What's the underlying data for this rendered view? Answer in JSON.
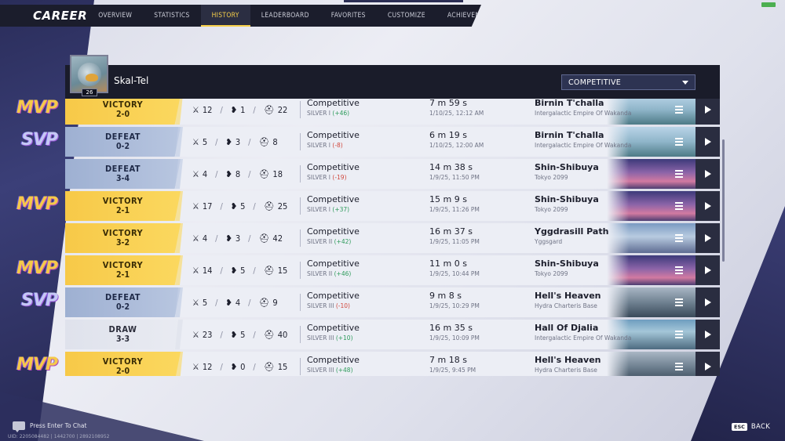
{
  "nav": {
    "title": "CAREER",
    "tabs": [
      {
        "label": "OVERVIEW"
      },
      {
        "label": "STATISTICS"
      },
      {
        "label": "HISTORY"
      },
      {
        "label": "LEADERBOARD"
      },
      {
        "label": "FAVORITES"
      },
      {
        "label": "CUSTOMIZE"
      },
      {
        "label": "ACHIEVEMENTS"
      }
    ],
    "active_tab": "HISTORY"
  },
  "profile": {
    "name": "Skal-Tel",
    "level": "26"
  },
  "mode_select": {
    "value": "COMPETITIVE"
  },
  "matches": [
    {
      "badge": "MVP",
      "result": "VICTORY",
      "score": "2-0",
      "kills": "12",
      "deaths": "1",
      "assists": "22",
      "mode": "Competitive",
      "rank": "SILVER I",
      "rank_delta": "(+46)",
      "delta_sign": "pos",
      "duration": "7 m 59 s",
      "datetime": "1/10/25, 12:12 AM",
      "map": "Birnin T'challa",
      "region": "Intergalactic Empire Of Wakanda",
      "map_key": "wakanda"
    },
    {
      "badge": "SVP",
      "result": "DEFEAT",
      "score": "0-2",
      "kills": "5",
      "deaths": "3",
      "assists": "8",
      "mode": "Competitive",
      "rank": "SILVER I",
      "rank_delta": "(-8)",
      "delta_sign": "neg",
      "duration": "6 m 19 s",
      "datetime": "1/10/25, 12:00 AM",
      "map": "Birnin T'challa",
      "region": "Intergalactic Empire Of Wakanda",
      "map_key": "wakanda"
    },
    {
      "badge": "",
      "result": "DEFEAT",
      "score": "3-4",
      "kills": "4",
      "deaths": "8",
      "assists": "18",
      "mode": "Competitive",
      "rank": "SILVER I",
      "rank_delta": "(-19)",
      "delta_sign": "neg",
      "duration": "14 m 38 s",
      "datetime": "1/9/25, 11:50 PM",
      "map": "Shin-Shibuya",
      "region": "Tokyo 2099",
      "map_key": "tokyo"
    },
    {
      "badge": "MVP",
      "result": "VICTORY",
      "score": "2-1",
      "kills": "17",
      "deaths": "5",
      "assists": "25",
      "mode": "Competitive",
      "rank": "SILVER I",
      "rank_delta": "(+37)",
      "delta_sign": "pos",
      "duration": "15 m 9 s",
      "datetime": "1/9/25, 11:26 PM",
      "map": "Shin-Shibuya",
      "region": "Tokyo 2099",
      "map_key": "tokyo"
    },
    {
      "badge": "",
      "result": "VICTORY",
      "score": "3-2",
      "kills": "4",
      "deaths": "3",
      "assists": "42",
      "mode": "Competitive",
      "rank": "SILVER II",
      "rank_delta": "(+42)",
      "delta_sign": "pos",
      "duration": "16 m 37 s",
      "datetime": "1/9/25, 11:05 PM",
      "map": "Yggdrasill Path",
      "region": "Yggsgard",
      "map_key": "yggs"
    },
    {
      "badge": "MVP",
      "result": "VICTORY",
      "score": "2-1",
      "kills": "14",
      "deaths": "5",
      "assists": "15",
      "mode": "Competitive",
      "rank": "SILVER II",
      "rank_delta": "(+46)",
      "delta_sign": "pos",
      "duration": "11 m 0 s",
      "datetime": "1/9/25, 10:44 PM",
      "map": "Shin-Shibuya",
      "region": "Tokyo 2099",
      "map_key": "tokyo"
    },
    {
      "badge": "SVP",
      "result": "DEFEAT",
      "score": "0-2",
      "kills": "5",
      "deaths": "4",
      "assists": "9",
      "mode": "Competitive",
      "rank": "SILVER III",
      "rank_delta": "(-10)",
      "delta_sign": "neg",
      "duration": "9 m 8 s",
      "datetime": "1/9/25, 10:29 PM",
      "map": "Hell's Heaven",
      "region": "Hydra Charteris Base",
      "map_key": "hydra"
    },
    {
      "badge": "",
      "result": "DRAW",
      "score": "3-3",
      "kills": "23",
      "deaths": "5",
      "assists": "40",
      "mode": "Competitive",
      "rank": "SILVER III",
      "rank_delta": "(+10)",
      "delta_sign": "pos",
      "duration": "16 m 35 s",
      "datetime": "1/9/25, 10:09 PM",
      "map": "Hall Of Djalia",
      "region": "Intergalactic Empire Of Wakanda",
      "map_key": "djalia"
    },
    {
      "badge": "MVP",
      "result": "VICTORY",
      "score": "2-0",
      "kills": "12",
      "deaths": "0",
      "assists": "15",
      "mode": "Competitive",
      "rank": "SILVER III",
      "rank_delta": "(+48)",
      "delta_sign": "pos",
      "duration": "7 m 18 s",
      "datetime": "1/9/25, 9:45 PM",
      "map": "Hell's Heaven",
      "region": "Hydra Charteris Base",
      "map_key": "hydra"
    }
  ],
  "footer": {
    "chat_hint": "Press Enter To Chat",
    "uid": "UID: 2205084482 | 1442700 | 2892108952",
    "back_key": "ESC",
    "back_label": "BACK"
  },
  "colors": {
    "victory": "#f7c948",
    "defeat": "#9eb0d2",
    "draw": "#dfe1ec",
    "accent_active_tab": "#f6cf4a",
    "positive": "#2e9b5b",
    "negative": "#d0473c"
  },
  "icons": {
    "kills": "crossed-swords-icon",
    "deaths": "broken-heart-icon",
    "assists": "helmet-icon",
    "row_menu": "hamburger-icon",
    "row_play": "play-icon",
    "dropdown": "caret-down-icon",
    "chat": "chat-icon"
  }
}
